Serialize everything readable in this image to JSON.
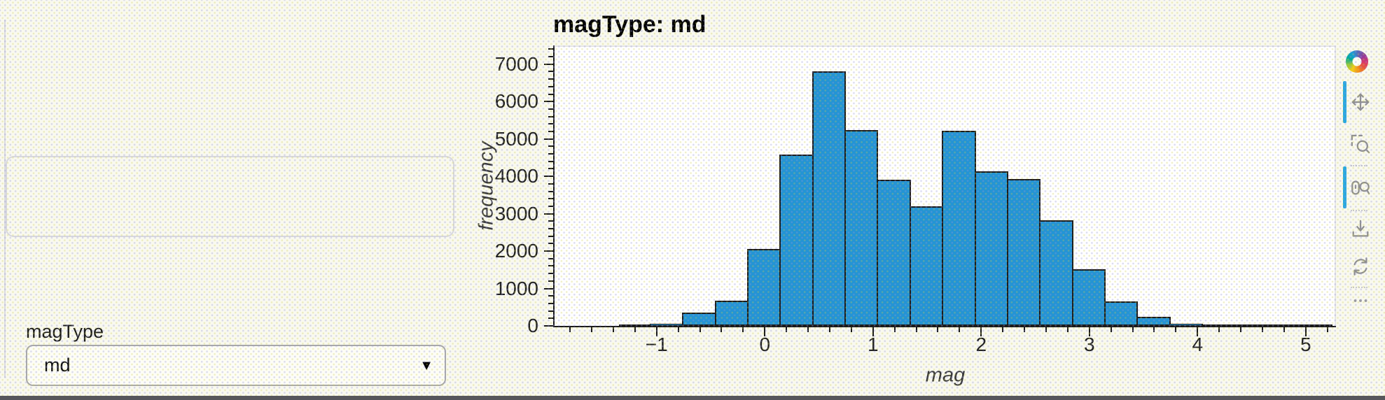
{
  "controls": {
    "label": "magType",
    "select_value": "md"
  },
  "plot": {
    "title": "magType: md"
  },
  "toolbar": {
    "logo": "bokeh-logo",
    "tools": [
      {
        "id": "pan",
        "name": "Pan",
        "active": true
      },
      {
        "id": "box-zoom",
        "name": "Box Zoom",
        "active": false
      },
      {
        "id": "wheel-zoom",
        "name": "Wheel Zoom",
        "active": true
      },
      {
        "id": "save",
        "name": "Save",
        "active": false
      },
      {
        "id": "reset",
        "name": "Reset",
        "active": false
      },
      {
        "id": "more",
        "name": "More tools",
        "active": false
      }
    ]
  },
  "chart_data": {
    "type": "bar",
    "title": "magType: md",
    "xlabel": "mag",
    "ylabel": "frequency",
    "xlim": [
      -1.95,
      5.28
    ],
    "ylim": [
      0,
      7500
    ],
    "x_ticks": [
      -1,
      0,
      1,
      2,
      3,
      4,
      5
    ],
    "y_ticks": [
      0,
      1000,
      2000,
      3000,
      4000,
      5000,
      6000,
      7000
    ],
    "x_minor_step": 0.2,
    "y_minor_step": 200,
    "grid": false,
    "legend": "none",
    "bin_start": -1.35,
    "bin_width": 0.3,
    "counts": [
      20,
      60,
      350,
      680,
      2050,
      4590,
      6800,
      5230,
      3900,
      3190,
      5225,
      4140,
      3920,
      2820,
      1520,
      650,
      250,
      60,
      15,
      10,
      8,
      6
    ]
  },
  "colors": {
    "bar_fill": "#2494d4",
    "bar_stroke": "#1c1c1c",
    "active_tool_indicator": "#29a8e0"
  }
}
